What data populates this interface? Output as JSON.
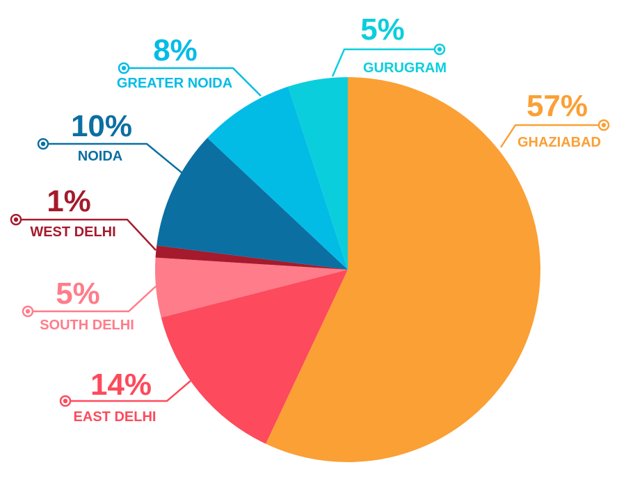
{
  "chart_data": {
    "type": "pie",
    "title": "",
    "start_angle_deg": 0,
    "direction": "clockwise",
    "slices": [
      {
        "label": "GHAZIABAD",
        "value": 57,
        "value_label": "57%",
        "color": "#FAA035"
      },
      {
        "label": "EAST DELHI",
        "value": 14,
        "value_label": "14%",
        "color": "#FD4A5C"
      },
      {
        "label": "SOUTH DELHI",
        "value": 5,
        "value_label": "5%",
        "color": "#FF7C8A"
      },
      {
        "label": "WEST DELHI",
        "value": 1,
        "value_label": "1%",
        "color": "#A51A2C"
      },
      {
        "label": "NOIDA",
        "value": 10,
        "value_label": "10%",
        "color": "#0B6FA2"
      },
      {
        "label": "GREATER NOIDA",
        "value": 8,
        "value_label": "8%",
        "color": "#03BCE6"
      },
      {
        "label": "GURUGRAM",
        "value": 5,
        "value_label": "5%",
        "color": "#0BCEDD"
      }
    ]
  }
}
